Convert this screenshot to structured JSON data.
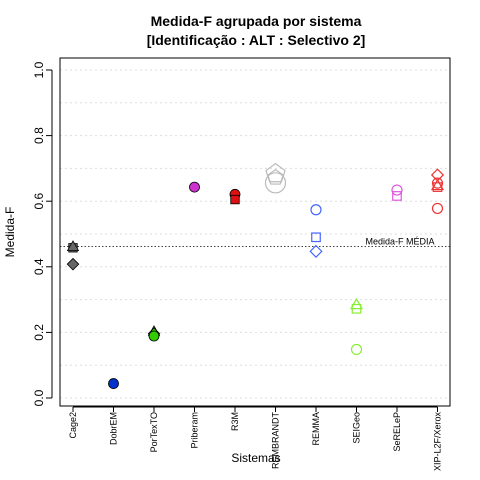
{
  "chart_data": {
    "type": "scatter",
    "title": "Medida-F agrupada por sistema",
    "subtitle": "[Identificação : ALT : Selectivo 2]",
    "xlabel": "Sistemas",
    "ylabel": "Medida-F",
    "ylim": [
      0,
      1
    ],
    "yticks": [
      "0.0",
      "0.2",
      "0.4",
      "0.6",
      "0.8",
      "1.0"
    ],
    "grid": true,
    "categories": [
      "Cage2",
      "DobrEM",
      "PorTexTO",
      "Priberam",
      "R3M",
      "REMBRANDT",
      "REMMA",
      "SEIGeo",
      "SeRELeP",
      "XIP-L2F/Xerox"
    ],
    "mean_line": {
      "value": 0.462,
      "label": "Medida-F MÉDIA"
    },
    "points": [
      {
        "category": "Cage2",
        "value": 0.458,
        "shape": "square",
        "filled": true,
        "color": "#666666"
      },
      {
        "category": "Cage2",
        "value": 0.462,
        "shape": "triangle",
        "filled": true,
        "color": "#666666"
      },
      {
        "category": "Cage2",
        "value": 0.408,
        "shape": "diamond",
        "filled": true,
        "color": "#666666"
      },
      {
        "category": "DobrEM",
        "value": 0.044,
        "shape": "circle",
        "filled": true,
        "color": "#0033cc"
      },
      {
        "category": "PorTexTO",
        "value": 0.203,
        "shape": "triangle",
        "filled": true,
        "color": "#33cc00"
      },
      {
        "category": "PorTexTO",
        "value": 0.196,
        "shape": "diamond",
        "filled": true,
        "color": "#33cc00"
      },
      {
        "category": "PorTexTO",
        "value": 0.189,
        "shape": "circle",
        "filled": true,
        "color": "#33cc00"
      },
      {
        "category": "Priberam",
        "value": 0.643,
        "shape": "circle",
        "filled": true,
        "color": "#cc33cc"
      },
      {
        "category": "R3M",
        "value": 0.621,
        "shape": "circle",
        "filled": true,
        "color": "#dd1111"
      },
      {
        "category": "R3M",
        "value": 0.605,
        "shape": "square",
        "filled": true,
        "color": "#dd1111"
      },
      {
        "category": "REMBRANDT",
        "value": 0.684,
        "shape": "pentagon",
        "filled": false,
        "color": "#bbbbbb",
        "size": 2.0
      },
      {
        "category": "REMBRANDT",
        "value": 0.672,
        "shape": "pentagon",
        "filled": false,
        "color": "#bbbbbb",
        "size": 1.6
      },
      {
        "category": "REMBRANDT",
        "value": 0.656,
        "shape": "circle",
        "filled": false,
        "color": "#bbbbbb",
        "size": 2.0
      },
      {
        "category": "REMMA",
        "value": 0.574,
        "shape": "circle",
        "filled": false,
        "color": "#4466ff"
      },
      {
        "category": "REMMA",
        "value": 0.49,
        "shape": "square",
        "filled": false,
        "color": "#4466ff"
      },
      {
        "category": "REMMA",
        "value": 0.447,
        "shape": "diamond",
        "filled": false,
        "color": "#4466ff"
      },
      {
        "category": "SEIGeo",
        "value": 0.285,
        "shape": "triangle",
        "filled": false,
        "color": "#88ee33"
      },
      {
        "category": "SEIGeo",
        "value": 0.272,
        "shape": "square",
        "filled": false,
        "color": "#88ee33"
      },
      {
        "category": "SEIGeo",
        "value": 0.148,
        "shape": "circle",
        "filled": false,
        "color": "#88ee33"
      },
      {
        "category": "SeRELeP",
        "value": 0.634,
        "shape": "circle",
        "filled": false,
        "color": "#dd55dd"
      },
      {
        "category": "SeRELeP",
        "value": 0.616,
        "shape": "square",
        "filled": false,
        "color": "#dd55dd"
      },
      {
        "category": "XIP-L2F/Xerox",
        "value": 0.68,
        "shape": "diamond",
        "filled": false,
        "color": "#ee3333"
      },
      {
        "category": "XIP-L2F/Xerox",
        "value": 0.655,
        "shape": "circle",
        "filled": false,
        "color": "#ee3333"
      },
      {
        "category": "XIP-L2F/Xerox",
        "value": 0.648,
        "shape": "triangle",
        "filled": false,
        "color": "#ee3333"
      },
      {
        "category": "XIP-L2F/Xerox",
        "value": 0.643,
        "shape": "square",
        "filled": false,
        "color": "#ee3333"
      },
      {
        "category": "XIP-L2F/Xerox",
        "value": 0.578,
        "shape": "circle",
        "filled": false,
        "color": "#ee3333"
      }
    ]
  }
}
